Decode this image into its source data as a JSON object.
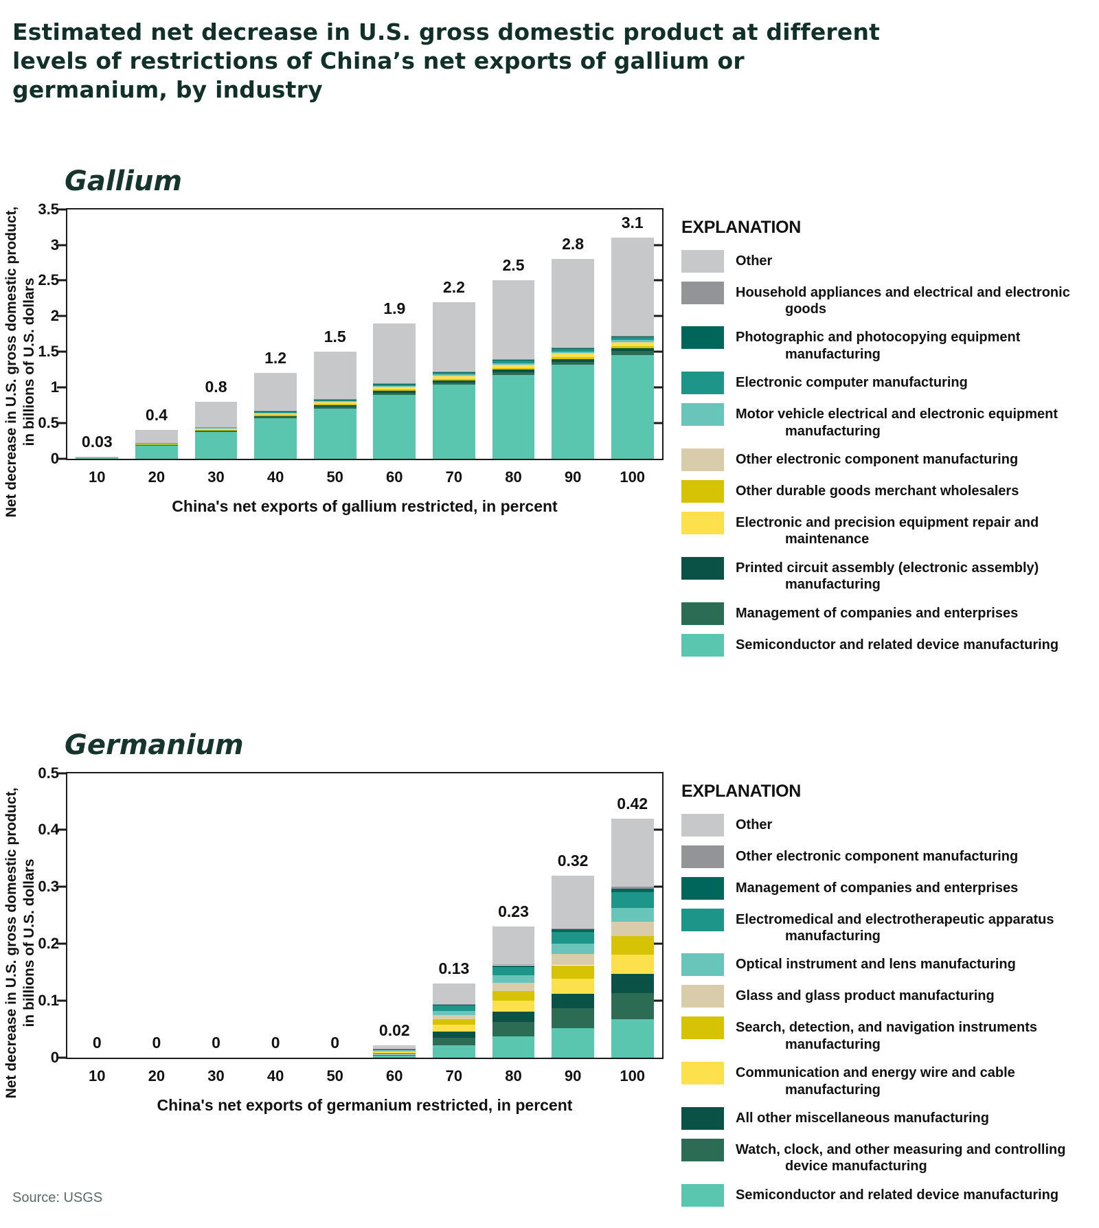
{
  "title": "Estimated net decrease in U.S. gross domestic product at different levels of restrictions of China’s net exports of gallium or germanium, by industry",
  "source": "Source: USGS",
  "palette": {
    "other": "#C7C8CA",
    "gray": "#929497",
    "dark_teal": "#00665B",
    "teal": "#1D9588",
    "light_teal": "#69C5B9",
    "tan": "#D8CCAB",
    "dark_yellow": "#D7C306",
    "bright_yellow": "#FCE14D",
    "very_dark_teal": "#0A5246",
    "green": "#2C6C55",
    "seafoam": "#5AC6AF"
  },
  "chart_data": [
    {
      "id": "gallium",
      "type": "bar",
      "subtitle": "Gallium",
      "legend_title": "EXPLANATION",
      "ylabel_line1": "Net decrease in U.S. gross domestic product,",
      "ylabel_line2": "in billions of U.S. dollars",
      "xlabel": "China's net exports of gallium restricted, in percent",
      "ylim": 3.5,
      "ytick_values": [
        0,
        0.5,
        1,
        1.5,
        2,
        2.5,
        3,
        3.5
      ],
      "ytick_labels": [
        "0",
        "0.5",
        "1",
        "1.5",
        "2",
        "2.5",
        "3",
        "3.5"
      ],
      "categories": [
        "10",
        "20",
        "30",
        "40",
        "50",
        "60",
        "70",
        "80",
        "90",
        "100"
      ],
      "bar_labels": [
        "0.03",
        "0.4",
        "0.8",
        "1.2",
        "1.5",
        "1.9",
        "2.2",
        "2.5",
        "2.8",
        "3.1"
      ],
      "totals": [
        0.03,
        0.4,
        0.8,
        1.2,
        1.5,
        1.9,
        2.2,
        2.5,
        2.8,
        3.1
      ],
      "legend": [
        {
          "label": "Other",
          "color": "#C7C8CA"
        },
        {
          "label": "Household appliances and electrical and electronic goods",
          "color": "#929497"
        },
        {
          "label": "Photographic and photocopying equipment manufacturing",
          "color": "#00665B"
        },
        {
          "label": "Electronic computer manufacturing",
          "color": "#1D9588"
        },
        {
          "label": "Motor vehicle electrical and electronic equipment manufacturing",
          "color": "#69C5B9"
        },
        {
          "label": "Other electronic component manufacturing",
          "color": "#D8CCAB"
        },
        {
          "label": "Other durable goods merchant wholesalers",
          "color": "#D7C306"
        },
        {
          "label": "Electronic and precision equipment repair and maintenance",
          "color": "#FCE14D"
        },
        {
          "label": "Printed circuit assembly (electronic assembly) manufacturing",
          "color": "#0A5246"
        },
        {
          "label": "Management of companies and enterprises",
          "color": "#2C6C55"
        },
        {
          "label": "Semiconductor and related device manufacturing",
          "color": "#5AC6AF"
        }
      ],
      "series": [
        {
          "name": "Semiconductor and related device manufacturing",
          "color": "#5AC6AF",
          "values": [
            0.014,
            0.188,
            0.376,
            0.564,
            0.705,
            0.893,
            1.034,
            1.175,
            1.316,
            1.457
          ]
        },
        {
          "name": "Management of companies and enterprises",
          "color": "#2C6C55",
          "values": [
            0.0005,
            0.006,
            0.013,
            0.019,
            0.024,
            0.03,
            0.035,
            0.04,
            0.045,
            0.05
          ]
        },
        {
          "name": "Printed circuit assembly (electronic assembly) manufacturing",
          "color": "#0A5246",
          "values": [
            0.0004,
            0.005,
            0.01,
            0.016,
            0.02,
            0.025,
            0.029,
            0.033,
            0.036,
            0.04
          ]
        },
        {
          "name": "Other durable goods merchant wholesalers",
          "color": "#D7C306",
          "values": [
            0.0003,
            0.004,
            0.008,
            0.012,
            0.015,
            0.019,
            0.022,
            0.025,
            0.028,
            0.031
          ]
        },
        {
          "name": "Electronic and precision equipment repair and maintenance",
          "color": "#FCE14D",
          "values": [
            0.0005,
            0.006,
            0.013,
            0.019,
            0.024,
            0.03,
            0.035,
            0.04,
            0.045,
            0.05
          ]
        },
        {
          "name": "Other electronic component manufacturing",
          "color": "#D8CCAB",
          "values": [
            0.0001,
            0.002,
            0.003,
            0.005,
            0.006,
            0.008,
            0.009,
            0.01,
            0.011,
            0.012
          ]
        },
        {
          "name": "Motor vehicle electrical and electronic equipment manufacturing",
          "color": "#69C5B9",
          "values": [
            0.0002,
            0.003,
            0.006,
            0.008,
            0.011,
            0.013,
            0.015,
            0.018,
            0.02,
            0.022
          ]
        },
        {
          "name": "Electronic computer manufacturing",
          "color": "#1D9588",
          "values": [
            0.0004,
            0.005,
            0.01,
            0.016,
            0.02,
            0.025,
            0.029,
            0.033,
            0.036,
            0.04
          ]
        },
        {
          "name": "Photographic and photocopying equipment manufacturing",
          "color": "#00665B",
          "values": [
            0.0001,
            0.002,
            0.003,
            0.005,
            0.006,
            0.008,
            0.009,
            0.01,
            0.011,
            0.012
          ]
        },
        {
          "name": "Household appliances and electrical and electronic goods",
          "color": "#929497",
          "values": [
            0.0001,
            0.002,
            0.003,
            0.005,
            0.006,
            0.008,
            0.009,
            0.01,
            0.011,
            0.012
          ]
        },
        {
          "name": "Other",
          "color": "#C7C8CA",
          "values": [
            0.0135,
            0.177,
            0.355,
            0.531,
            0.663,
            0.841,
            0.974,
            1.106,
            1.241,
            1.374
          ]
        }
      ]
    },
    {
      "id": "germanium",
      "type": "bar",
      "subtitle": "Germanium",
      "legend_title": "EXPLANATION",
      "ylabel_line1": "Net decrease in U.S. gross domestic product,",
      "ylabel_line2": "in billions of U.S. dollars",
      "xlabel": "China's net exports of germanium restricted, in percent",
      "ylim": 0.5,
      "ytick_values": [
        0,
        0.1,
        0.2,
        0.3,
        0.4,
        0.5
      ],
      "ytick_labels": [
        "0",
        "0.1",
        "0.2",
        "0.3",
        "0.4",
        "0.5"
      ],
      "categories": [
        "10",
        "20",
        "30",
        "40",
        "50",
        "60",
        "70",
        "80",
        "90",
        "100"
      ],
      "bar_labels": [
        "0",
        "0",
        "0",
        "0",
        "0",
        "0.02",
        "0.13",
        "0.23",
        "0.32",
        "0.42"
      ],
      "totals": [
        0,
        0,
        0,
        0,
        0,
        0.02,
        0.13,
        0.23,
        0.32,
        0.42
      ],
      "legend": [
        {
          "label": "Other",
          "color": "#C7C8CA"
        },
        {
          "label": "Other electronic component manufacturing",
          "color": "#929497"
        },
        {
          "label": "Management of companies and enterprises",
          "color": "#00665B"
        },
        {
          "label": "Electromedical and electrotherapeutic apparatus manufacturing",
          "color": "#1D9588"
        },
        {
          "label": "Optical instrument and lens manufacturing",
          "color": "#69C5B9"
        },
        {
          "label": "Glass and glass product manufacturing",
          "color": "#D8CCAB"
        },
        {
          "label": "Search, detection, and navigation instruments manufacturing",
          "color": "#D7C306"
        },
        {
          "label": "Communication and energy wire and cable manufacturing",
          "color": "#FCE14D"
        },
        {
          "label": "All other miscellaneous manufacturing",
          "color": "#0A5246"
        },
        {
          "label": "Watch, clock, and other measuring and controlling device manufacturing",
          "color": "#2C6C55"
        },
        {
          "label": "Semiconductor and related device manufacturing",
          "color": "#5AC6AF"
        }
      ],
      "series": [
        {
          "name": "Semiconductor and related device manufacturing",
          "color": "#5AC6AF",
          "values": [
            0,
            0,
            0,
            0,
            0,
            0.003,
            0.021,
            0.037,
            0.051,
            0.067
          ]
        },
        {
          "name": "Watch, clock, and other measuring and controlling device manufacturing",
          "color": "#2C6C55",
          "values": [
            0,
            0,
            0,
            0,
            0,
            0.002,
            0.014,
            0.025,
            0.035,
            0.046
          ]
        },
        {
          "name": "All other miscellaneous manufacturing",
          "color": "#0A5246",
          "values": [
            0,
            0,
            0,
            0,
            0,
            0.002,
            0.011,
            0.019,
            0.026,
            0.034
          ]
        },
        {
          "name": "Communication and energy wire and cable manufacturing",
          "color": "#FCE14D",
          "values": [
            0,
            0,
            0,
            0,
            0,
            0.002,
            0.011,
            0.019,
            0.026,
            0.034
          ]
        },
        {
          "name": "Search, detection, and navigation instruments manufacturing",
          "color": "#D7C306",
          "values": [
            0,
            0,
            0,
            0,
            0,
            0.002,
            0.01,
            0.017,
            0.024,
            0.032
          ]
        },
        {
          "name": "Glass and glass product manufacturing",
          "color": "#D8CCAB",
          "values": [
            0,
            0,
            0,
            0,
            0,
            0.001,
            0.008,
            0.014,
            0.02,
            0.026
          ]
        },
        {
          "name": "Optical instrument and lens manufacturing",
          "color": "#69C5B9",
          "values": [
            0,
            0,
            0,
            0,
            0,
            0.001,
            0.007,
            0.013,
            0.018,
            0.024
          ]
        },
        {
          "name": "Electromedical and electrotherapeutic apparatus manufacturing",
          "color": "#1D9588",
          "values": [
            0,
            0,
            0,
            0,
            0,
            0.001,
            0.009,
            0.015,
            0.021,
            0.028
          ]
        },
        {
          "name": "Management of companies and enterprises",
          "color": "#00665B",
          "values": [
            0,
            0,
            0,
            0,
            0,
            0.0005,
            0.002,
            0.003,
            0.004,
            0.006
          ]
        },
        {
          "name": "Other electronic component manufacturing",
          "color": "#929497",
          "values": [
            0,
            0,
            0,
            0,
            0,
            0.0005,
            0.001,
            0.002,
            0.002,
            0.003
          ]
        },
        {
          "name": "Other",
          "color": "#C7C8CA",
          "values": [
            0,
            0,
            0,
            0,
            0,
            0.006,
            0.036,
            0.066,
            0.093,
            0.12
          ]
        }
      ]
    }
  ]
}
